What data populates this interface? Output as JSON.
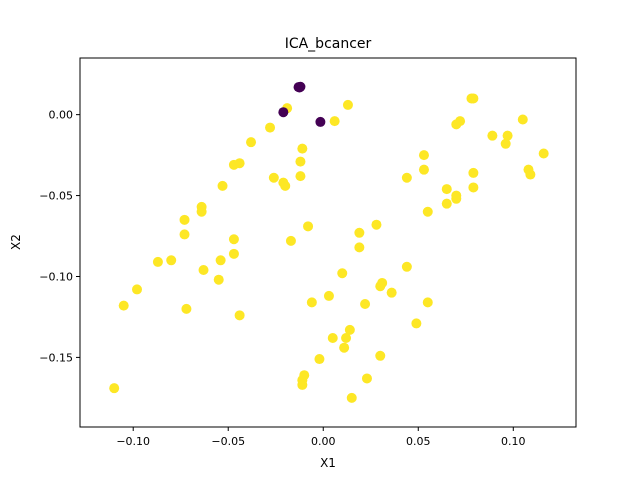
{
  "chart_data": {
    "type": "scatter",
    "title": "ICA_bcancer",
    "xlabel": "X1",
    "ylabel": "X2",
    "xlim": [
      -0.128,
      0.133
    ],
    "ylim": [
      -0.193,
      0.035
    ],
    "xticks": [
      -0.1,
      -0.05,
      0.0,
      0.05,
      0.1
    ],
    "xtick_labels": [
      "−0.10",
      "−0.05",
      "0.00",
      "0.05",
      "0.10"
    ],
    "yticks": [
      0.0,
      -0.05,
      -0.1,
      -0.15
    ],
    "ytick_labels": [
      "0.00",
      "−0.05",
      "−0.10",
      "−0.15"
    ],
    "grid": false,
    "colors": {
      "class_0": "#440154",
      "class_1": "#fde725"
    },
    "series": [
      {
        "color_key": "class_0",
        "points": [
          [
            -0.013,
            0.017
          ],
          [
            -0.0125,
            0.0168
          ],
          [
            -0.012,
            0.0172
          ],
          [
            -0.021,
            0.0015
          ],
          [
            -0.0015,
            -0.0045
          ]
        ]
      },
      {
        "color_key": "class_1",
        "points": [
          [
            -0.019,
            0.004
          ],
          [
            -0.028,
            -0.008
          ],
          [
            -0.038,
            -0.017
          ],
          [
            -0.044,
            -0.03
          ],
          [
            -0.047,
            -0.031
          ],
          [
            -0.053,
            -0.044
          ],
          [
            -0.064,
            -0.057
          ],
          [
            -0.064,
            -0.06
          ],
          [
            -0.073,
            -0.065
          ],
          [
            -0.073,
            -0.074
          ],
          [
            -0.047,
            -0.077
          ],
          [
            -0.047,
            -0.086
          ],
          [
            -0.054,
            -0.09
          ],
          [
            -0.063,
            -0.096
          ],
          [
            -0.055,
            -0.102
          ],
          [
            -0.08,
            -0.09
          ],
          [
            -0.087,
            -0.091
          ],
          [
            -0.098,
            -0.108
          ],
          [
            -0.105,
            -0.118
          ],
          [
            -0.072,
            -0.12
          ],
          [
            -0.044,
            -0.124
          ],
          [
            -0.11,
            -0.169
          ],
          [
            -0.026,
            -0.039
          ],
          [
            -0.021,
            -0.042
          ],
          [
            -0.02,
            -0.044
          ],
          [
            -0.011,
            -0.021
          ],
          [
            -0.012,
            -0.029
          ],
          [
            -0.012,
            -0.038
          ],
          [
            -0.008,
            -0.069
          ],
          [
            -0.017,
            -0.078
          ],
          [
            0.006,
            -0.004
          ],
          [
            0.013,
            0.006
          ],
          [
            0.01,
            -0.098
          ],
          [
            0.019,
            -0.073
          ],
          [
            0.019,
            -0.082
          ],
          [
            0.028,
            -0.068
          ],
          [
            0.003,
            -0.112
          ],
          [
            -0.006,
            -0.116
          ],
          [
            0.022,
            -0.117
          ],
          [
            0.031,
            -0.104
          ],
          [
            0.03,
            -0.106
          ],
          [
            0.036,
            -0.11
          ],
          [
            0.044,
            -0.094
          ],
          [
            0.055,
            -0.116
          ],
          [
            0.049,
            -0.129
          ],
          [
            0.005,
            -0.138
          ],
          [
            0.014,
            -0.133
          ],
          [
            0.012,
            -0.138
          ],
          [
            0.011,
            -0.144
          ],
          [
            -0.002,
            -0.151
          ],
          [
            0.03,
            -0.149
          ],
          [
            -0.01,
            -0.161
          ],
          [
            -0.011,
            -0.164
          ],
          [
            -0.011,
            -0.167
          ],
          [
            0.023,
            -0.163
          ],
          [
            0.015,
            -0.175
          ],
          [
            0.044,
            -0.039
          ],
          [
            0.053,
            -0.025
          ],
          [
            0.053,
            -0.034
          ],
          [
            0.065,
            -0.046
          ],
          [
            0.065,
            -0.055
          ],
          [
            0.07,
            -0.05
          ],
          [
            0.07,
            -0.052
          ],
          [
            0.055,
            -0.06
          ],
          [
            0.072,
            -0.004
          ],
          [
            0.07,
            -0.006
          ],
          [
            0.078,
            0.01
          ],
          [
            0.079,
            0.01
          ],
          [
            0.079,
            -0.036
          ],
          [
            0.079,
            -0.045
          ],
          [
            0.089,
            -0.013
          ],
          [
            0.097,
            -0.013
          ],
          [
            0.096,
            -0.018
          ],
          [
            0.105,
            -0.003
          ],
          [
            0.108,
            -0.034
          ],
          [
            0.109,
            -0.037
          ],
          [
            0.116,
            -0.024
          ]
        ]
      }
    ]
  }
}
